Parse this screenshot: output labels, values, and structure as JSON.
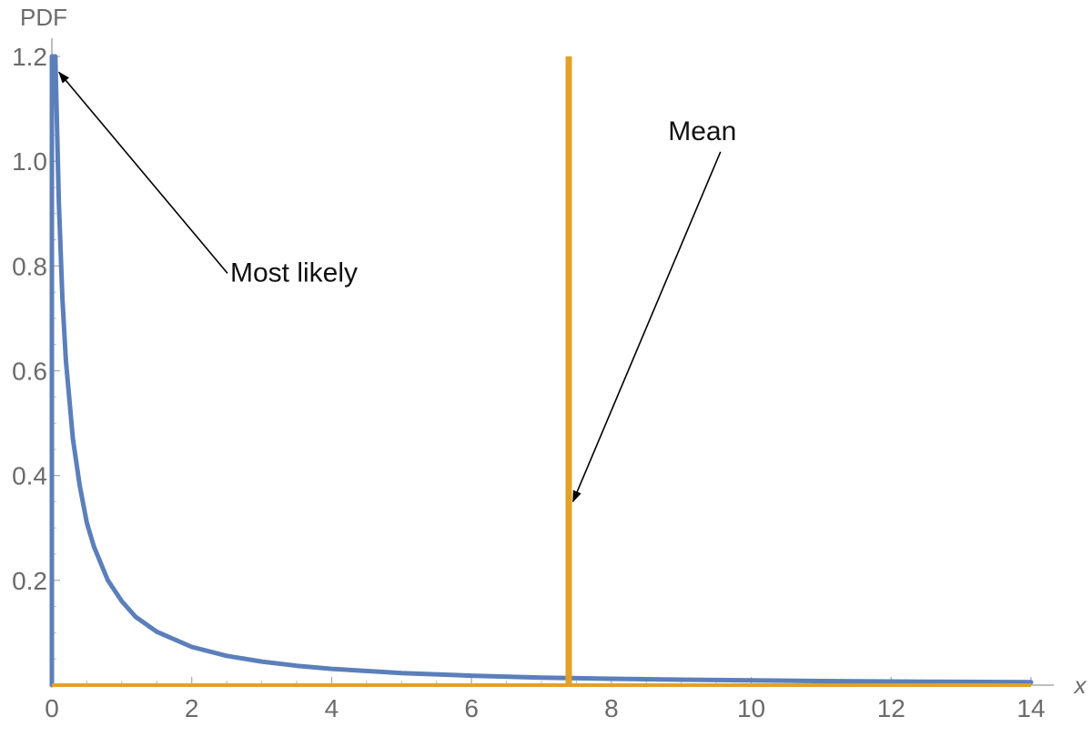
{
  "chart_data": {
    "type": "line",
    "title": "",
    "xlabel": "x",
    "ylabel": "PDF",
    "xlim": [
      0,
      14
    ],
    "ylim": [
      0,
      1.2
    ],
    "x_ticks": [
      0,
      2,
      4,
      6,
      8,
      10,
      12,
      14
    ],
    "x_tick_labels": [
      "0",
      "2",
      "4",
      "6",
      "8",
      "10",
      "12",
      "14"
    ],
    "y_ticks": [
      0.2,
      0.4,
      0.6,
      0.8,
      1.0,
      1.2
    ],
    "y_tick_labels": [
      "0.2",
      "0.4",
      "0.6",
      "0.8",
      "1.0",
      "1.2"
    ],
    "grid": false,
    "legend": "none",
    "series": [
      {
        "color": "#5b7fba",
        "x": [
          0.0,
          0.05,
          0.1,
          0.15,
          0.2,
          0.3,
          0.4,
          0.5,
          0.6,
          0.8,
          1.0,
          1.2,
          1.5,
          2.0,
          2.5,
          3.0,
          3.5,
          4.0,
          5.0,
          6.0,
          7.0,
          8.0,
          9.0,
          10.0,
          11.0,
          12.0,
          13.0,
          14.0
        ],
        "y": [
          1.2,
          1.2,
          0.92,
          0.74,
          0.62,
          0.47,
          0.38,
          0.31,
          0.265,
          0.2,
          0.16,
          0.13,
          0.102,
          0.073,
          0.056,
          0.045,
          0.037,
          0.031,
          0.023,
          0.018,
          0.0145,
          0.0122,
          0.0104,
          0.009,
          0.0079,
          0.007,
          0.0062,
          0.0055
        ]
      }
    ],
    "mean_line": {
      "x": 7.39,
      "color": "#e3a127"
    },
    "annotations": [
      {
        "text": "Most likely",
        "arrow_target": [
          0.1,
          1.17
        ],
        "text_at": [
          2.55,
          0.8
        ]
      },
      {
        "text": "Mean",
        "arrow_target": [
          7.45,
          0.35
        ],
        "text_at": [
          9.3,
          1.07
        ]
      }
    ]
  }
}
